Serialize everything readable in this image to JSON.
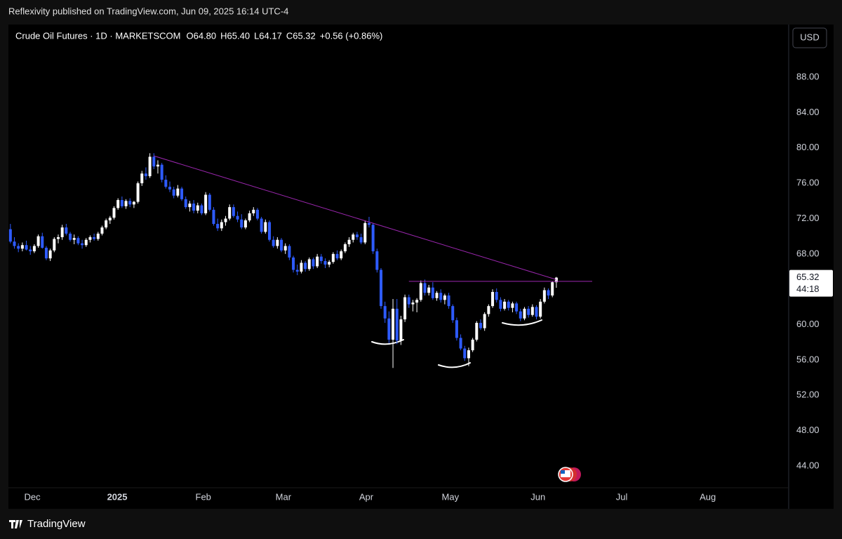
{
  "header": {
    "published": "Reflexivity published on TradingView.com, Jun 09, 2025 16:14 UTC-4"
  },
  "footer": {
    "brand": "TradingView"
  },
  "chart_data": {
    "type": "candlestick",
    "symbol": "Crude Oil Futures · 1D · MARKETSCOM",
    "ohlc_labels": [
      "O64.80",
      "H65.40",
      "L64.17",
      "C65.32",
      "+0.56 (+0.86%)"
    ],
    "currency": "USD",
    "last_price": {
      "value": 65.32,
      "label": "65.32"
    },
    "countdown": "44:18",
    "up_color": "#ffffff",
    "down_color": "#2e5bff",
    "trendline_color": "#9c27b0",
    "xlim": [
      -0.5,
      195.3
    ],
    "xticks": [
      {
        "value": 5.5,
        "label": "Dec"
      },
      {
        "value": 26.8,
        "label": "2025"
      },
      {
        "value": 48.4,
        "label": "Feb"
      },
      {
        "value": 68.5,
        "label": "Mar"
      },
      {
        "value": 89.3,
        "label": "Apr"
      },
      {
        "value": 110.4,
        "label": "May"
      },
      {
        "value": 132.4,
        "label": "Jun"
      },
      {
        "value": 153.4,
        "label": "Jul"
      },
      {
        "value": 175.0,
        "label": "Aug"
      }
    ],
    "ylim": [
      41.54,
      93.96
    ],
    "yticks": [
      {
        "value": 44,
        "label": "44.00"
      },
      {
        "value": 48,
        "label": "48.00"
      },
      {
        "value": 52,
        "label": "52.00"
      },
      {
        "value": 56,
        "label": "56.00"
      },
      {
        "value": 60,
        "label": "60.00"
      },
      {
        "value": 64,
        "label": "64.00"
      },
      {
        "value": 68,
        "label": "68.00"
      },
      {
        "value": 72,
        "label": "72.00"
      },
      {
        "value": 76,
        "label": "76.00"
      },
      {
        "value": 80,
        "label": "80.00"
      },
      {
        "value": 84,
        "label": "84.00"
      },
      {
        "value": 88,
        "label": "88.00"
      }
    ],
    "trendlines": [
      {
        "x": [
          36,
          137
        ],
        "y": [
          79.1,
          65.1
        ]
      },
      {
        "x": [
          100,
          146
        ],
        "y": [
          64.9,
          64.9
        ]
      }
    ],
    "candles": [
      [
        70.8,
        71.4,
        69.2,
        69.4
      ],
      [
        69.4,
        69.9,
        68.6,
        68.9
      ],
      [
        68.9,
        69.2,
        68.2,
        68.6
      ],
      [
        68.6,
        69.3,
        68.3,
        69.0
      ],
      [
        69.0,
        69.5,
        68.4,
        68.5
      ],
      [
        68.5,
        68.9,
        67.9,
        68.3
      ],
      [
        68.3,
        69.1,
        68.1,
        68.9
      ],
      [
        68.9,
        70.2,
        68.7,
        70.0
      ],
      [
        70.0,
        70.4,
        68.6,
        68.7
      ],
      [
        68.7,
        68.9,
        67.3,
        67.5
      ],
      [
        67.5,
        68.6,
        67.2,
        68.4
      ],
      [
        68.4,
        69.9,
        68.2,
        69.7
      ],
      [
        69.7,
        70.2,
        69.2,
        69.9
      ],
      [
        69.9,
        71.3,
        69.6,
        71.0
      ],
      [
        71.0,
        71.4,
        70.1,
        70.3
      ],
      [
        70.3,
        70.5,
        69.4,
        69.6
      ],
      [
        69.6,
        70.2,
        69.1,
        69.8
      ],
      [
        69.8,
        70.0,
        69.0,
        69.2
      ],
      [
        69.2,
        69.6,
        68.6,
        69.0
      ],
      [
        69.0,
        69.8,
        68.8,
        69.6
      ],
      [
        69.6,
        70.1,
        69.3,
        69.9
      ],
      [
        69.9,
        70.3,
        69.5,
        69.7
      ],
      [
        69.7,
        70.5,
        69.5,
        70.3
      ],
      [
        70.3,
        71.2,
        70.1,
        71.0
      ],
      [
        71.0,
        72.0,
        70.8,
        71.8
      ],
      [
        71.8,
        72.3,
        71.4,
        72.1
      ],
      [
        72.1,
        73.4,
        71.9,
        73.2
      ],
      [
        73.2,
        74.3,
        73.0,
        74.1
      ],
      [
        74.1,
        74.5,
        73.2,
        73.4
      ],
      [
        73.4,
        74.2,
        73.1,
        74.0
      ],
      [
        74.0,
        74.3,
        73.3,
        73.6
      ],
      [
        73.6,
        74.0,
        73.2,
        73.9
      ],
      [
        73.9,
        76.2,
        73.7,
        76.0
      ],
      [
        76.0,
        77.4,
        75.7,
        77.1
      ],
      [
        77.1,
        77.8,
        76.4,
        76.8
      ],
      [
        76.8,
        79.4,
        76.6,
        79.0
      ],
      [
        79.0,
        79.4,
        77.6,
        77.9
      ],
      [
        77.9,
        78.6,
        77.1,
        78.1
      ],
      [
        78.1,
        78.3,
        76.1,
        76.4
      ],
      [
        76.4,
        76.9,
        75.4,
        75.6
      ],
      [
        75.6,
        76.2,
        75.0,
        75.3
      ],
      [
        75.3,
        75.6,
        74.3,
        74.6
      ],
      [
        74.6,
        75.8,
        74.4,
        75.4
      ],
      [
        75.4,
        75.6,
        74.0,
        74.2
      ],
      [
        74.2,
        74.5,
        73.1,
        73.3
      ],
      [
        73.3,
        74.0,
        72.8,
        73.7
      ],
      [
        73.7,
        74.1,
        72.6,
        72.9
      ],
      [
        72.9,
        73.8,
        72.6,
        73.5
      ],
      [
        73.5,
        73.7,
        72.4,
        72.6
      ],
      [
        72.6,
        75.0,
        72.4,
        74.7
      ],
      [
        74.7,
        74.9,
        72.8,
        73.0
      ],
      [
        73.0,
        73.3,
        71.2,
        71.4
      ],
      [
        71.4,
        72.0,
        70.6,
        70.9
      ],
      [
        70.9,
        71.9,
        70.6,
        71.6
      ],
      [
        71.6,
        72.3,
        71.2,
        72.0
      ],
      [
        72.0,
        73.6,
        71.8,
        73.3
      ],
      [
        73.3,
        73.6,
        72.1,
        72.3
      ],
      [
        72.3,
        72.8,
        71.6,
        71.9
      ],
      [
        71.9,
        72.5,
        70.8,
        71.0
      ],
      [
        71.0,
        72.0,
        70.8,
        71.8
      ],
      [
        71.8,
        72.9,
        71.6,
        72.6
      ],
      [
        72.6,
        73.3,
        72.3,
        73.0
      ],
      [
        73.0,
        73.2,
        71.8,
        72.0
      ],
      [
        72.0,
        72.2,
        70.3,
        70.5
      ],
      [
        70.5,
        71.9,
        70.3,
        71.6
      ],
      [
        71.6,
        71.8,
        69.4,
        69.6
      ],
      [
        69.6,
        70.0,
        68.7,
        68.9
      ],
      [
        68.9,
        69.9,
        68.6,
        69.6
      ],
      [
        69.6,
        69.8,
        68.2,
        68.4
      ],
      [
        68.4,
        69.2,
        68.0,
        68.9
      ],
      [
        68.9,
        69.1,
        67.3,
        67.6
      ],
      [
        67.6,
        67.8,
        65.9,
        66.2
      ],
      [
        66.2,
        66.8,
        65.6,
        66.0
      ],
      [
        66.0,
        67.3,
        65.8,
        67.0
      ],
      [
        67.0,
        67.2,
        66.0,
        66.3
      ],
      [
        66.3,
        67.6,
        66.1,
        67.4
      ],
      [
        67.4,
        67.6,
        66.3,
        66.6
      ],
      [
        66.6,
        68.0,
        66.4,
        67.7
      ],
      [
        67.7,
        68.0,
        66.9,
        67.2
      ],
      [
        67.2,
        67.5,
        66.4,
        66.8
      ],
      [
        66.8,
        67.3,
        66.5,
        67.1
      ],
      [
        67.1,
        68.2,
        66.9,
        68.0
      ],
      [
        68.0,
        68.4,
        67.3,
        67.5
      ],
      [
        67.5,
        68.5,
        67.3,
        68.3
      ],
      [
        68.3,
        69.3,
        68.1,
        69.1
      ],
      [
        69.1,
        69.9,
        68.8,
        69.6
      ],
      [
        69.6,
        70.4,
        69.3,
        70.2
      ],
      [
        70.2,
        70.5,
        69.6,
        69.9
      ],
      [
        69.9,
        70.3,
        69.1,
        69.3
      ],
      [
        69.3,
        71.8,
        69.1,
        71.5
      ],
      [
        71.5,
        72.2,
        71.0,
        71.3
      ],
      [
        71.3,
        71.5,
        68.0,
        68.3
      ],
      [
        68.3,
        68.6,
        65.9,
        66.2
      ],
      [
        66.2,
        66.4,
        61.8,
        62.1
      ],
      [
        62.1,
        62.6,
        60.2,
        60.7
      ],
      [
        60.7,
        61.5,
        57.9,
        58.3
      ],
      [
        58.3,
        62.9,
        55.1,
        61.8
      ],
      [
        61.8,
        62.9,
        57.8,
        58.2
      ],
      [
        58.2,
        61.0,
        57.7,
        60.6
      ],
      [
        60.6,
        63.4,
        60.3,
        63.1
      ],
      [
        63.1,
        63.4,
        61.9,
        62.3
      ],
      [
        62.3,
        62.8,
        61.5,
        62.5
      ],
      [
        62.5,
        63.0,
        61.4,
        62.8
      ],
      [
        62.8,
        65.0,
        62.6,
        64.7
      ],
      [
        64.7,
        65.1,
        63.3,
        63.6
      ],
      [
        63.6,
        64.5,
        63.3,
        64.2
      ],
      [
        64.2,
        64.8,
        62.8,
        63.0
      ],
      [
        63.0,
        63.8,
        62.7,
        63.6
      ],
      [
        63.6,
        64.0,
        62.5,
        62.8
      ],
      [
        62.8,
        63.5,
        62.3,
        63.3
      ],
      [
        63.3,
        63.6,
        61.8,
        62.1
      ],
      [
        62.1,
        62.3,
        60.2,
        60.5
      ],
      [
        60.5,
        60.8,
        58.2,
        58.5
      ],
      [
        58.5,
        58.9,
        57.1,
        57.3
      ],
      [
        57.3,
        57.6,
        55.9,
        56.2
      ],
      [
        56.2,
        57.4,
        55.3,
        57.1
      ],
      [
        57.1,
        58.5,
        56.9,
        58.3
      ],
      [
        58.3,
        60.4,
        58.1,
        60.2
      ],
      [
        60.2,
        60.6,
        59.4,
        59.6
      ],
      [
        59.6,
        61.4,
        59.3,
        61.2
      ],
      [
        61.2,
        62.3,
        60.9,
        62.1
      ],
      [
        62.1,
        64.0,
        61.9,
        63.7
      ],
      [
        63.7,
        64.1,
        62.5,
        62.8
      ],
      [
        62.8,
        63.1,
        61.5,
        61.8
      ],
      [
        61.8,
        62.9,
        61.6,
        62.6
      ],
      [
        62.6,
        62.8,
        61.6,
        61.9
      ],
      [
        61.9,
        62.6,
        61.4,
        62.4
      ],
      [
        62.4,
        62.6,
        61.2,
        61.5
      ],
      [
        61.5,
        61.8,
        60.4,
        60.7
      ],
      [
        60.7,
        62.0,
        60.5,
        61.8
      ],
      [
        61.8,
        62.1,
        60.8,
        61.1
      ],
      [
        61.1,
        62.3,
        60.9,
        62.0
      ],
      [
        62.0,
        62.2,
        60.6,
        60.9
      ],
      [
        60.9,
        62.9,
        60.7,
        62.6
      ],
      [
        62.6,
        64.2,
        62.4,
        63.9
      ],
      [
        63.9,
        64.1,
        62.9,
        63.3
      ],
      [
        63.3,
        64.9,
        63.1,
        64.8
      ],
      [
        64.8,
        65.4,
        64.17,
        65.32
      ]
    ]
  }
}
